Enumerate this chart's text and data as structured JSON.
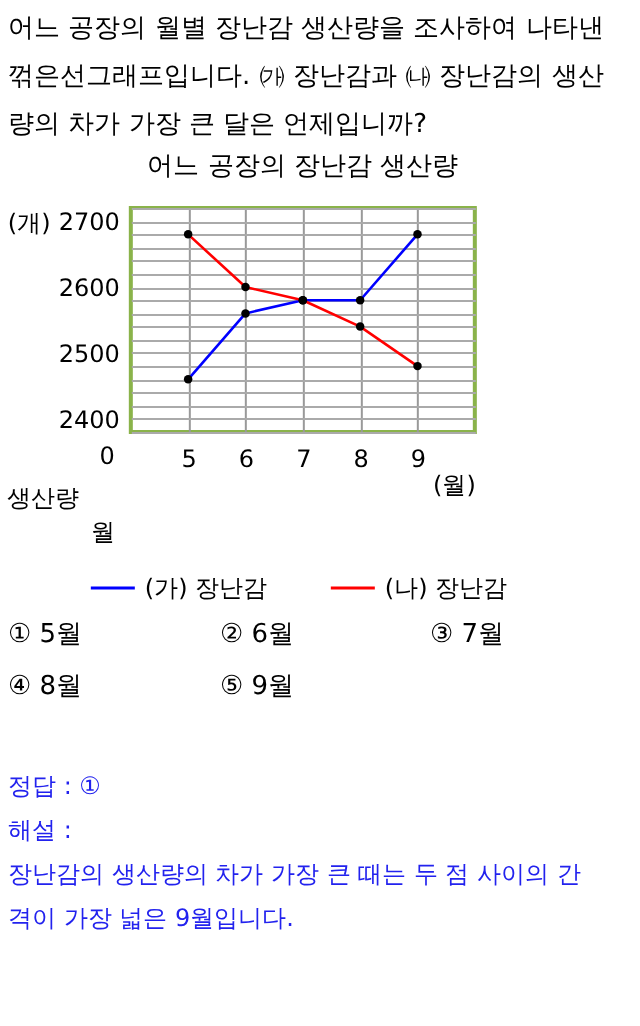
{
  "chart_data": {
    "type": "line",
    "title": "어느 공장의 장난감 생산량",
    "x": [
      5,
      6,
      7,
      8,
      9
    ],
    "series": [
      {
        "name": "(가) 장난감",
        "color": "#0000ff",
        "values": [
          2460,
          2560,
          2580,
          2580,
          2680
        ]
      },
      {
        "name": "(나) 장난감",
        "color": "#ff0000",
        "values": [
          2680,
          2600,
          2580,
          2540,
          2480
        ]
      }
    ],
    "xlim": [
      4,
      10
    ],
    "xticks": [
      5,
      6,
      7,
      8,
      9
    ],
    "ylim": [
      2380,
      2720
    ],
    "yticks": [
      {
        "value": 2380,
        "label": null
      },
      2400,
      {
        "value": 2420,
        "label": null
      },
      {
        "value": 2440,
        "label": null
      },
      {
        "value": 2460,
        "label": null
      },
      {
        "value": 2480,
        "label": null
      },
      2500,
      {
        "value": 2520,
        "label": null
      },
      {
        "value": 2540,
        "label": null
      },
      {
        "value": 2560,
        "label": null
      },
      {
        "value": 2580,
        "label": null
      },
      2600,
      {
        "value": 2620,
        "label": null
      },
      {
        "value": 2640,
        "label": null
      },
      {
        "value": 2660,
        "label": null
      },
      {
        "value": 2680,
        "label": null
      },
      2700,
      {
        "value": 2720,
        "label": null
      }
    ],
    "xlabel": "(월)",
    "ylabel": "(개)",
    "grid": true,
    "legend": "bottom",
    "marker": "circle",
    "line_style": "solid",
    "annotations": [
      "어느 공장의 월별 장난감 생산량을 조사하여 나타낸",
      "꺾은선그래프입니다. ㈎ 장난감과 ㈏ 장난감의 생산",
      "량의 차가 가장 큰 달은 언제입니까?",
      "0",
      "생산량",
      "월",
      "① 5월",
      "② 6월",
      "③ 7월",
      "④ 8월",
      "⑤ 9월",
      "정답 : ①",
      "해설 :",
      "장난감의 생산량의 차가 가장 큰 때는 두 점 사이의 간",
      "격이 가장 넓은 9월입니다."
    ]
  }
}
